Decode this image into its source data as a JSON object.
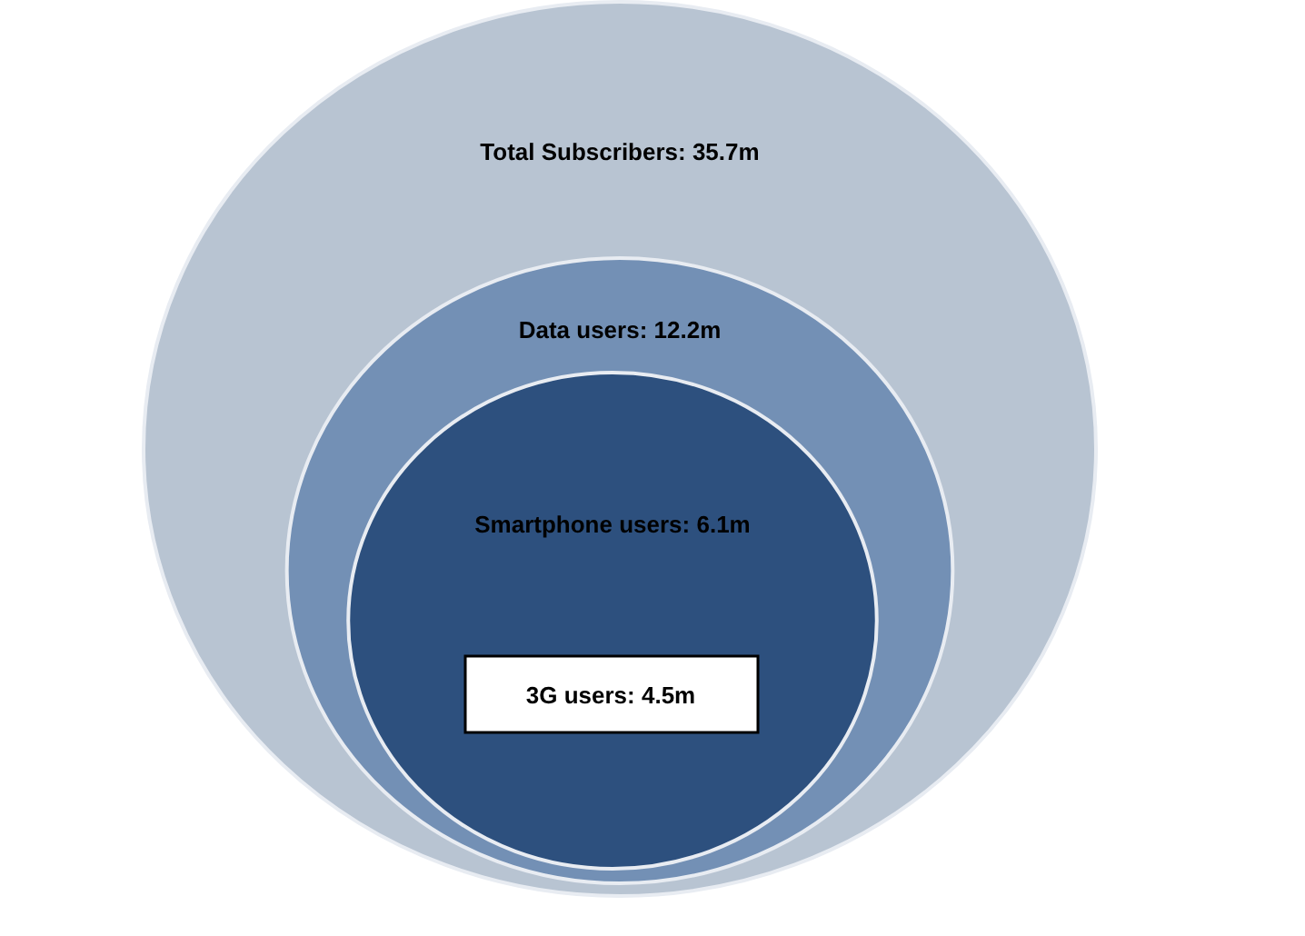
{
  "chart_data": {
    "type": "other",
    "categories": [
      "Total Subscribers",
      "Data users",
      "Smartphone users",
      "3G users"
    ],
    "values": [
      35.7,
      12.2,
      6.1,
      4.5
    ],
    "value_labels": [
      ": 35.7m",
      ": 12.2m",
      ": 6.1m",
      ": 4.5m"
    ],
    "colors": [
      "#b8c4d2",
      "#7390b5",
      "#2d507e",
      "#ffffff"
    ]
  }
}
